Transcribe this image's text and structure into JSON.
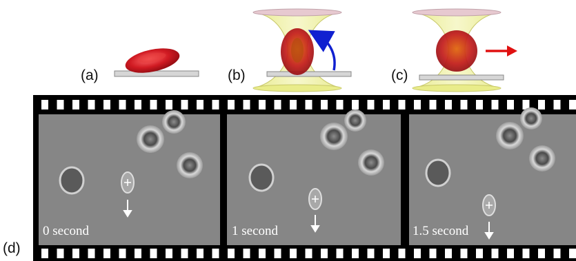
{
  "panels": {
    "a": {
      "label": "(a)"
    },
    "b": {
      "label": "(b)"
    },
    "c": {
      "label": "(c)"
    },
    "d": {
      "label": "(d)"
    }
  },
  "colors": {
    "rbc": "#c8141c",
    "beam": "#e9ec8a",
    "beam_cap": "#e7c9d0",
    "slide": "#d6d6d6",
    "rotation_arrow": "#1020d0",
    "push_arrow": "#e01010",
    "film": "#000000",
    "frame_bg": "#8a8a8a"
  },
  "icons": [
    "rotation-arrow-icon",
    "push-arrow-icon",
    "down-arrow-icon",
    "crosshair-icon"
  ],
  "frames": [
    {
      "caption": "0 second"
    },
    {
      "caption": "1 second"
    },
    {
      "caption": "1.5 second"
    }
  ]
}
